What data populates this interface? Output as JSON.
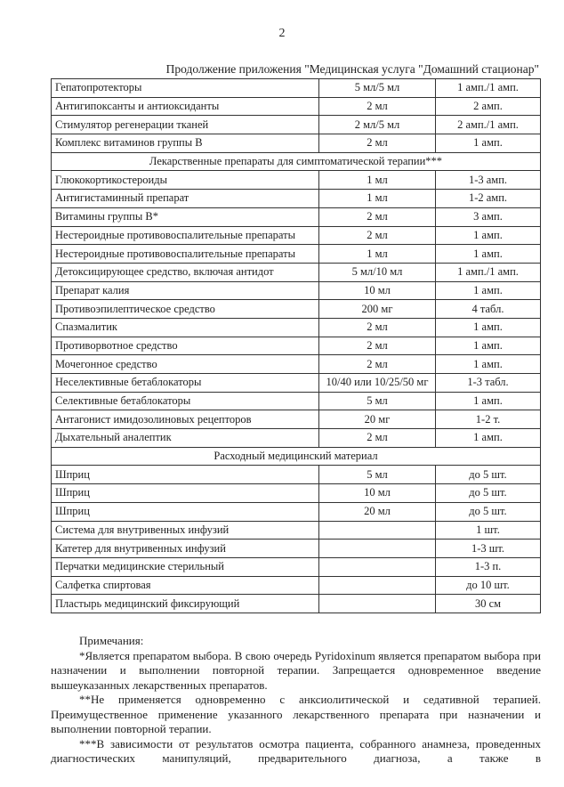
{
  "page_number": "2",
  "subtitle": "Продолжение приложения \"Медицинская услуга \"Домашний стационар\"",
  "rows": [
    {
      "name": "Гепатопротекторы",
      "dose": "5 мл/5 мл",
      "qty": "1 амп./1 амп."
    },
    {
      "name": "Антигипоксанты и антиоксиданты",
      "dose": "2 мл",
      "qty": "2 амп."
    },
    {
      "name": "Стимулятор регенерации тканей",
      "dose": "2 мл/5 мл",
      "qty": "2 амп./1 амп."
    },
    {
      "name": "Комплекс витаминов группы В",
      "dose": "2 мл",
      "qty": "1 амп."
    },
    {
      "section": "Лекарственные препараты для симптоматической терапии***"
    },
    {
      "name": "Глюкокортикостероиды",
      "dose": "1 мл",
      "qty": "1-3 амп."
    },
    {
      "name": "Антигистаминный препарат",
      "dose": "1 мл",
      "qty": "1-2 амп."
    },
    {
      "name": "Витамины группы В*",
      "dose": "2 мл",
      "qty": "3 амп."
    },
    {
      "name": "Нестероидные противовоспалительные препараты",
      "dose": "2 мл",
      "qty": "1 амп."
    },
    {
      "name": "Нестероидные противовоспалительные препараты",
      "dose": "1 мл",
      "qty": "1 амп."
    },
    {
      "name": "Детоксицирующее средство, включая антидот",
      "dose": "5 мл/10 мл",
      "qty": "1 амп./1 амп."
    },
    {
      "name": "Препарат калия",
      "dose": "10 мл",
      "qty": "1 амп."
    },
    {
      "name": "Противоэпилептическое средство",
      "dose": "200 мг",
      "qty": "4 табл."
    },
    {
      "name": "Спазмалитик",
      "dose": "2 мл",
      "qty": "1 амп."
    },
    {
      "name": "Противорвотное средство",
      "dose": "2 мл",
      "qty": "1 амп."
    },
    {
      "name": "Мочегонное средство",
      "dose": "2 мл",
      "qty": "1 амп."
    },
    {
      "name": "Неселективные бетаблокаторы",
      "dose": "10/40 или 10/25/50 мг",
      "qty": "1-3 табл."
    },
    {
      "name": "Селективные бетаблокаторы",
      "dose": "5 мл",
      "qty": "1 амп."
    },
    {
      "name": "Антагонист имидозолиновых рецепторов",
      "dose": "20 мг",
      "qty": "1-2 т."
    },
    {
      "name": "Дыхательный аналептик",
      "dose": "2 мл",
      "qty": "1 амп."
    },
    {
      "section": "Расходный медицинский материал"
    },
    {
      "name": "Шприц",
      "dose": "5 мл",
      "qty": "до 5 шт."
    },
    {
      "name": "Шприц",
      "dose": "10 мл",
      "qty": "до 5 шт."
    },
    {
      "name": "Шприц",
      "dose": "20 мл",
      "qty": "до 5 шт."
    },
    {
      "name": "Система для внутривенных инфузий",
      "dose": "",
      "qty": "1 шт."
    },
    {
      "name": "Катетер для внутривенных инфузий",
      "dose": "",
      "qty": "1-3 шт."
    },
    {
      "name": "Перчатки медицинские стерильный",
      "dose": "",
      "qty": "1-3 п."
    },
    {
      "name": "Салфетка спиртовая",
      "dose": "",
      "qty": "до 10 шт."
    },
    {
      "name": "Пластырь медицинский фиксирующий",
      "dose": "",
      "qty": "30 см"
    }
  ],
  "notes": {
    "heading": "Примечания:",
    "items": [
      "*Является препаратом выбора. В свою очередь Pyridoxinum является препаратом выбора при назначении и выполнении повторной терапии. Запрещается одновременное введение вышеуказанных лекарственных препаратов.",
      "**Не применяется одновременно с анксиолитической и седативной терапией. Преимущественное применение указанного лекарственного препарата при назначении и выполнении повторной терапии.",
      "***В зависимости от результатов осмотра пациента, собранного анамнеза, проведенных диагностических манипуляций, предварительного диагноза, а также в"
    ]
  }
}
